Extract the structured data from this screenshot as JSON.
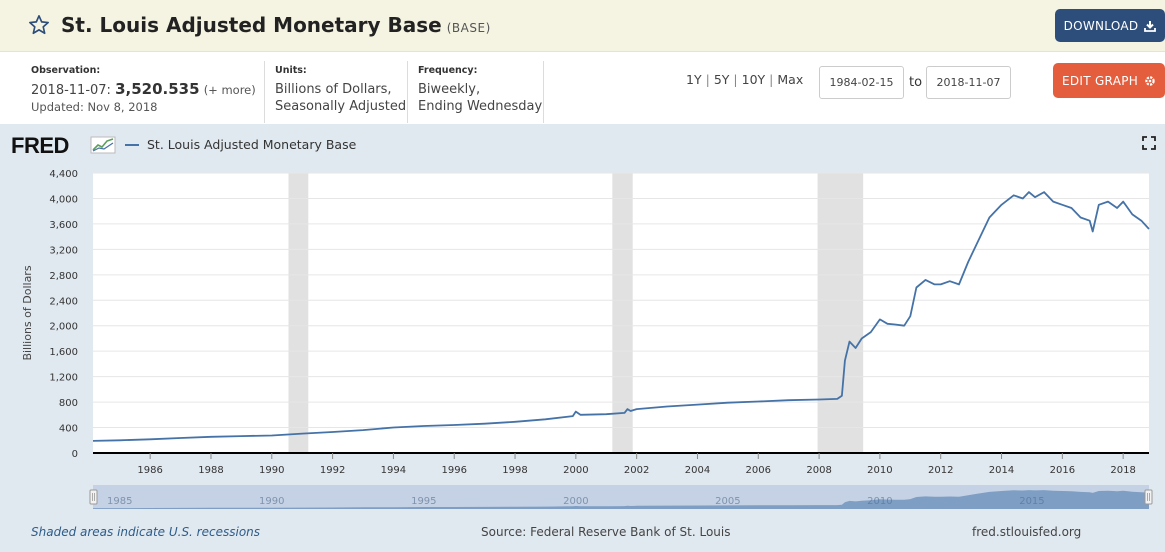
{
  "header": {
    "title": "St. Louis Adjusted Monetary Base",
    "series_id": "(BASE)",
    "download_label": "DOWNLOAD"
  },
  "meta": {
    "observation_label": "Observation:",
    "observation_date": "2018-11-07:",
    "observation_value": "3,520.535",
    "observation_more": "(+ more)",
    "updated": "Updated: Nov 8, 2018",
    "units_label": "Units:",
    "units_line1": "Billions of Dollars,",
    "units_line2": "Seasonally Adjusted",
    "frequency_label": "Frequency:",
    "frequency_line1": "Biweekly,",
    "frequency_line2": "Ending Wednesday"
  },
  "range": {
    "links": [
      "1Y",
      "5Y",
      "10Y",
      "Max"
    ],
    "start_date": "1984-02-15",
    "to_label": "to",
    "end_date": "2018-11-07",
    "edit_label": "EDIT GRAPH"
  },
  "logo": {
    "text": "FRED"
  },
  "footer": {
    "recession_note": "Shaded areas indicate U.S. recessions",
    "source": "Source: Federal Reserve Bank of St. Louis",
    "site": "fred.stlouisfed.org"
  },
  "colors": {
    "series": "#4572a7",
    "recession": "#e1e1e1",
    "panel": "#e1e9f0",
    "download_button": "#2d4e7a",
    "edit_button": "#e45d3d"
  },
  "chart_data": {
    "type": "line",
    "title": "St. Louis Adjusted Monetary Base",
    "xlabel": "",
    "ylabel": "Billions of Dollars",
    "xlim": [
      1984.12,
      2018.85
    ],
    "ylim": [
      0,
      4400
    ],
    "y_ticks": [
      0,
      400,
      800,
      1200,
      1600,
      2000,
      2400,
      2800,
      3200,
      3600,
      4000,
      4400
    ],
    "y_tick_labels": [
      "0",
      "400",
      "800",
      "1,200",
      "1,600",
      "2,000",
      "2,400",
      "2,800",
      "3,200",
      "3,600",
      "4,000",
      "4,400"
    ],
    "x_ticks": [
      1986,
      1988,
      1990,
      1992,
      1994,
      1996,
      1998,
      2000,
      2002,
      2004,
      2006,
      2008,
      2010,
      2012,
      2014,
      2016,
      2018
    ],
    "x_tick_labels": [
      "1986",
      "1988",
      "1990",
      "1992",
      "1994",
      "1996",
      "1998",
      "2000",
      "2002",
      "2004",
      "2006",
      "2008",
      "2010",
      "2012",
      "2014",
      "2016",
      "2018"
    ],
    "legend": [
      "St. Louis Adjusted Monetary Base"
    ],
    "recessions": [
      [
        1990.55,
        1991.2
      ],
      [
        2001.2,
        2001.87
      ],
      [
        2007.95,
        2009.45
      ]
    ],
    "navigator_ticks": [
      1985,
      1990,
      1995,
      2000,
      2005,
      2010,
      2015
    ],
    "navigator_tick_labels": [
      "1985",
      "1990",
      "1995",
      "2000",
      "2005",
      "2010",
      "2015"
    ],
    "series": [
      {
        "name": "St. Louis Adjusted Monetary Base",
        "x": [
          1984.12,
          1985,
          1986,
          1987,
          1988,
          1989,
          1990,
          1991,
          1992,
          1993,
          1994,
          1995,
          1996,
          1997,
          1998,
          1999,
          1999.9,
          2000.0,
          2000.15,
          2001,
          2001.6,
          2001.7,
          2001.8,
          2002,
          2003,
          2004,
          2005,
          2006,
          2007,
          2008,
          2008.6,
          2008.75,
          2008.85,
          2009.0,
          2009.2,
          2009.4,
          2009.7,
          2010.0,
          2010.25,
          2010.5,
          2010.8,
          2011.0,
          2011.2,
          2011.5,
          2011.8,
          2012.0,
          2012.3,
          2012.6,
          2012.9,
          2013.2,
          2013.6,
          2014.0,
          2014.4,
          2014.7,
          2014.9,
          2015.1,
          2015.4,
          2015.7,
          2016.0,
          2016.3,
          2016.6,
          2016.9,
          2017.0,
          2017.2,
          2017.5,
          2017.8,
          2018.0,
          2018.3,
          2018.6,
          2018.85
        ],
        "values": [
          190,
          200,
          215,
          235,
          255,
          265,
          275,
          305,
          330,
          360,
          400,
          425,
          440,
          460,
          490,
          530,
          580,
          650,
          600,
          610,
          630,
          690,
          660,
          690,
          730,
          760,
          790,
          810,
          830,
          840,
          850,
          900,
          1450,
          1750,
          1650,
          1800,
          1900,
          2100,
          2030,
          2020,
          2000,
          2150,
          2600,
          2720,
          2650,
          2650,
          2700,
          2650,
          3000,
          3300,
          3700,
          3900,
          4050,
          4000,
          4100,
          4020,
          4100,
          3950,
          3900,
          3850,
          3700,
          3650,
          3480,
          3900,
          3950,
          3850,
          3950,
          3750,
          3650,
          3520
        ]
      }
    ]
  }
}
